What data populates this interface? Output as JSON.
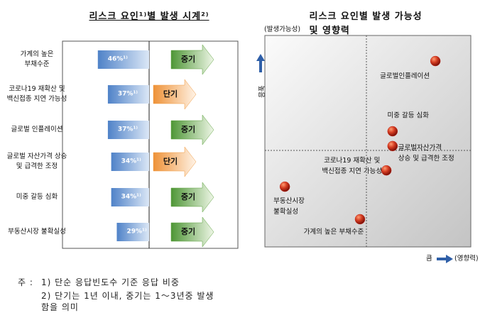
{
  "chart_data": [
    {
      "type": "bar",
      "title": "리스크 요인¹⁾별 발생 시계²⁾",
      "categories": [
        "가계의 높은\n부채수준",
        "코로나19 재확산 및\n백신접종 지연 가능성",
        "글로벌 인플레이션",
        "글로벌 자산가격 상승\n및 급격한 조정",
        "미중 갈등 심화",
        "부동산시장 불확실성"
      ],
      "values": [
        46,
        37,
        37,
        34,
        34,
        29
      ],
      "value_labels": [
        "46%¹⁾",
        "37%¹⁾",
        "37%¹⁾",
        "34%¹⁾",
        "34%¹⁾",
        "29%¹⁾"
      ],
      "color": "#5b8fd3",
      "terms": [
        "중기",
        "단기",
        "중기",
        "단기",
        "중기",
        "중기"
      ],
      "term_colors": {
        "중기": "#5aa03c",
        "단기": "#f09a40"
      }
    },
    {
      "type": "scatter",
      "title": "리스크 요인별 발생 가능성 및 영향력",
      "labels": [
        "글로벌인플레이션",
        "미중 갈등 심화",
        "글로벌자산가격\n상승 및 급격한 조정",
        "코로나19 재확산 및\n백신접종 지연 가능성",
        "부동산시장\n불확실성",
        "가계의 높은 부채수준"
      ],
      "x": [
        82.8,
        62,
        62,
        59,
        9.7,
        46.2
      ],
      "y": [
        87.9,
        54.7,
        47.7,
        36.2,
        28.5,
        13.1
      ],
      "xlim": [
        0,
        100
      ],
      "ylim": [
        0,
        100
      ],
      "color": "#c42a1c",
      "y_label": "(발생가능성)",
      "y_note": "높음",
      "x_label": "(영향력)",
      "x_note": "큼"
    }
  ],
  "notes": [
    "주 :",
    "1) 단순 응답빈도수 기준 응답 비중",
    "2) 단기는 1년 이내, 중기는 1～3년중 발생\n함을 의미"
  ]
}
